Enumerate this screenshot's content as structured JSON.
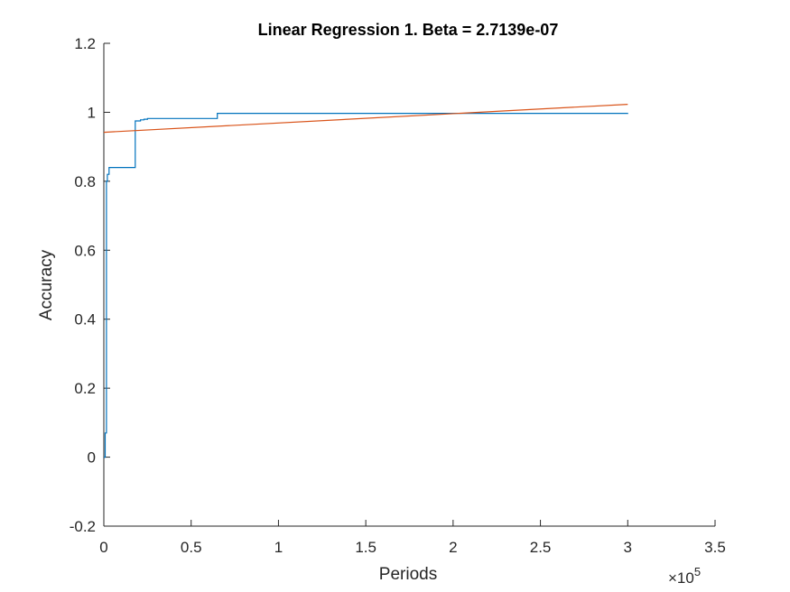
{
  "chart_data": {
    "type": "line",
    "title": "Linear Regression 1. Beta = 2.7139e-07",
    "xlabel": "Periods",
    "ylabel": "Accuracy",
    "x_exponent_label": "×10",
    "x_exponent_power": "5",
    "xlim": [
      0,
      350000
    ],
    "ylim": [
      -0.2,
      1.2
    ],
    "x_ticks": [
      0,
      50000,
      100000,
      150000,
      200000,
      250000,
      300000,
      350000
    ],
    "x_tick_labels": [
      "0",
      "0.5",
      "1",
      "1.5",
      "2",
      "2.5",
      "3",
      "3.5"
    ],
    "y_ticks": [
      -0.2,
      0,
      0.2,
      0.4,
      0.6,
      0.8,
      1,
      1.2
    ],
    "y_tick_labels": [
      "-0.2",
      "0",
      "0.2",
      "0.4",
      "0.6",
      "0.8",
      "1",
      "1.2"
    ],
    "grid": false,
    "series": [
      {
        "color": "#0072BD",
        "step": true,
        "x": [
          0,
          800,
          1500,
          2000,
          3000,
          18000,
          21000,
          23000,
          25000,
          65000,
          300000
        ],
        "y": [
          0.0,
          0.07,
          0.8,
          0.82,
          0.84,
          0.975,
          0.978,
          0.98,
          0.982,
          0.997,
          0.998
        ]
      },
      {
        "color": "#D95319",
        "step": false,
        "x": [
          0,
          300000
        ],
        "y": [
          0.942,
          1.023
        ]
      }
    ]
  }
}
